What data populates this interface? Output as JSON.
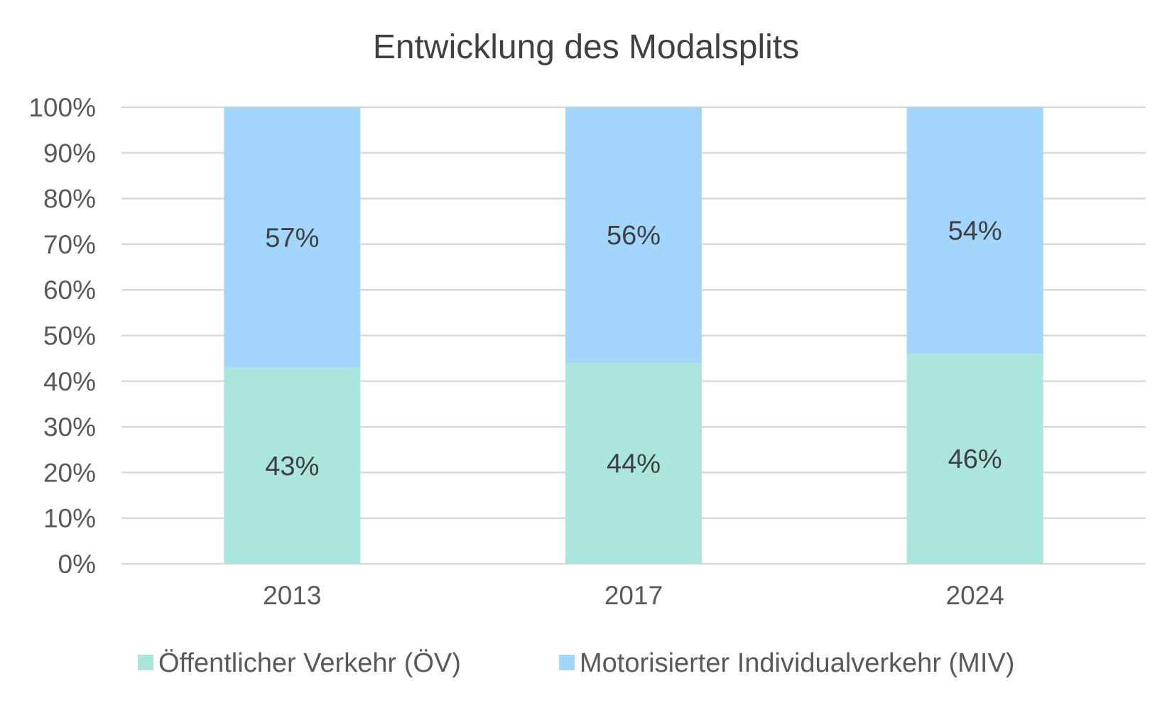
{
  "chart_data": {
    "type": "bar",
    "stacked": true,
    "title": "Entwicklung des Modalsplits",
    "xlabel": "",
    "ylabel": "",
    "categories": [
      "2013",
      "2017",
      "2024"
    ],
    "series": [
      {
        "name": "Öffentlicher Verkehr (ÖV)",
        "values": [
          43,
          44,
          46
        ],
        "labels": [
          "43%",
          "44%",
          "46%"
        ],
        "color": "#abe6dc"
      },
      {
        "name": "Motorisierter Individualverkehr (MIV)",
        "values": [
          57,
          56,
          54
        ],
        "labels": [
          "57%",
          "56%",
          "54%"
        ],
        "color": "#a2d6fd"
      }
    ],
    "ylim": [
      0,
      100
    ],
    "yticks": [
      {
        "value": 0,
        "label": "0%"
      },
      {
        "value": 10,
        "label": "10%"
      },
      {
        "value": 20,
        "label": "20%"
      },
      {
        "value": 30,
        "label": "30%"
      },
      {
        "value": 40,
        "label": "40%"
      },
      {
        "value": 50,
        "label": "50%"
      },
      {
        "value": 60,
        "label": "60%"
      },
      {
        "value": 70,
        "label": "70%"
      },
      {
        "value": 80,
        "label": "80%"
      },
      {
        "value": 90,
        "label": "90%"
      },
      {
        "value": 100,
        "label": "100%"
      }
    ],
    "grid": true,
    "legend_position": "bottom"
  }
}
